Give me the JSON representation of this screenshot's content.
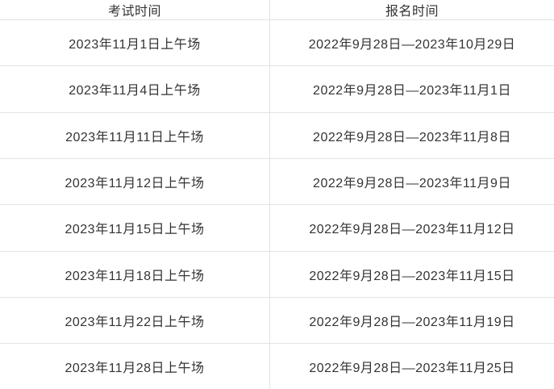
{
  "table": {
    "columns": [
      "考试时间",
      "报名时间"
    ],
    "rows": [
      [
        "2023年11月1日上午场",
        "2022年9月28日—2023年10月29日"
      ],
      [
        "2023年11月4日上午场",
        "2022年9月28日—2023年11月1日"
      ],
      [
        "2023年11月11日上午场",
        "2022年9月28日—2023年11月8日"
      ],
      [
        "2023年11月12日上午场",
        "2022年9月28日—2023年11月9日"
      ],
      [
        "2023年11月15日上午场",
        "2022年9月28日—2023年11月12日"
      ],
      [
        "2023年11月18日上午场",
        "2022年9月28日—2023年11月15日"
      ],
      [
        "2023年11月22日上午场",
        "2022年9月28日—2023年11月19日"
      ],
      [
        "2023年11月28日上午场",
        "2022年9月28日—2023年11月25日"
      ]
    ],
    "colors": {
      "border": "#e3e3e3",
      "text": "#333333",
      "background": "#ffffff"
    }
  }
}
